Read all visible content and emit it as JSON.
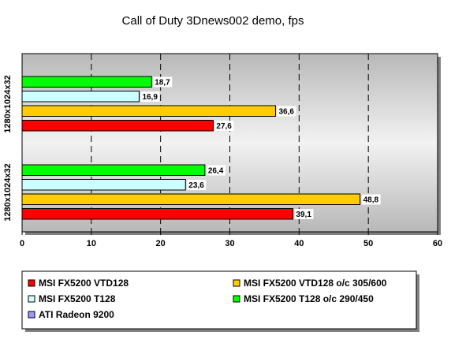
{
  "chart_data": {
    "type": "bar",
    "orientation": "horizontal",
    "title": "Call of  Duty 3Dnews002 demo, fps",
    "xlabel": "",
    "ylabel": "",
    "xlim": [
      0,
      60
    ],
    "x_ticks": [
      "0",
      "10",
      "20",
      "30",
      "40",
      "50",
      "60"
    ],
    "grid": "vertical-dashed",
    "legend_position": "bottom",
    "categories": [
      "1280x1024x32",
      "1280x1024x32"
    ],
    "series": [
      {
        "name": "MSI FX5200 VTD128",
        "color": "#ff0000",
        "values": [
          27.6,
          39.1
        ],
        "labels": [
          "27,6",
          "39,1"
        ]
      },
      {
        "name": "MSI FX5200 VTD128 o/c 305/600",
        "color": "#ffcc00",
        "values": [
          36.6,
          48.8
        ],
        "labels": [
          "36,6",
          "48,8"
        ]
      },
      {
        "name": "MSI FX5200 T128",
        "color": "#ccffff",
        "values": [
          16.9,
          23.6
        ],
        "labels": [
          "16,9",
          "23,6"
        ]
      },
      {
        "name": "MSI FX5200 T128 o/c 290/450",
        "color": "#00ff00",
        "values": [
          18.7,
          26.4
        ],
        "labels": [
          "18,7",
          "26,4"
        ]
      },
      {
        "name": "ATI Radeon 9200",
        "color": "#9999ff",
        "values": [
          null,
          null
        ],
        "labels": [
          "",
          ""
        ]
      }
    ]
  }
}
